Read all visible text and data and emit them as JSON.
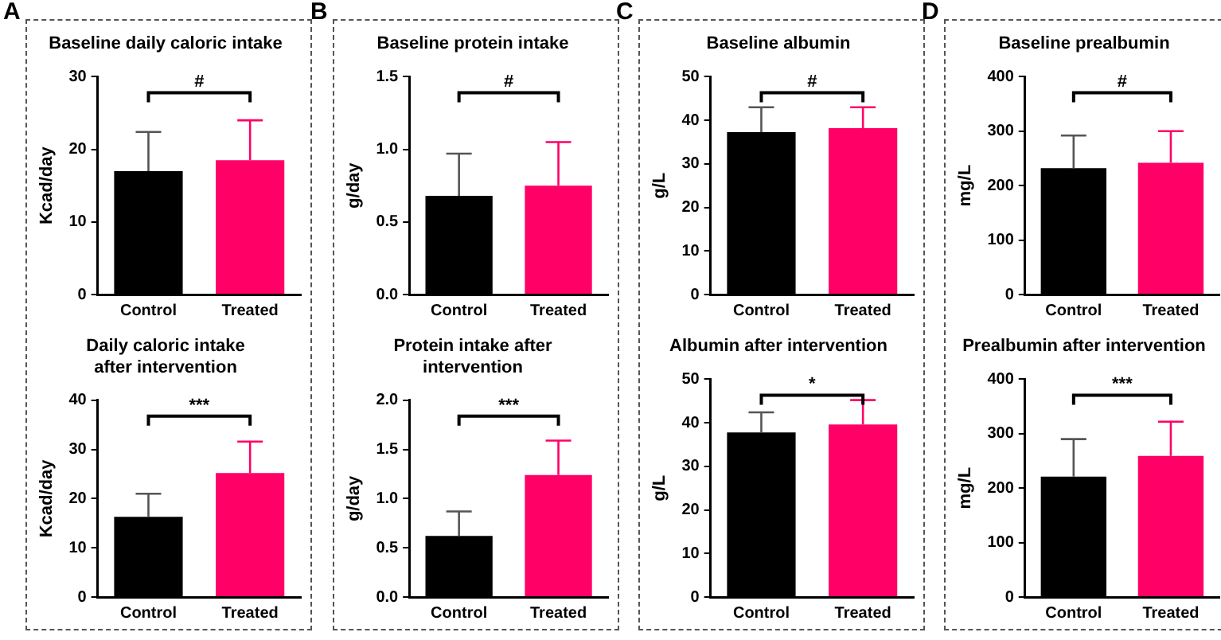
{
  "chart_data": [
    {
      "type": "bar",
      "title": "Baseline daily caloric intake",
      "ylabel": "Kcad/day",
      "categories": [
        "Control",
        "Treated"
      ],
      "values": [
        17.0,
        18.5
      ],
      "errors": [
        [
          17.0,
          22.4
        ],
        [
          18.5,
          24.0
        ]
      ],
      "colors": [
        "#000000",
        "#ff0066"
      ],
      "ylim": [
        0,
        30
      ],
      "yticks": [
        0,
        10,
        20,
        30
      ],
      "grid": false,
      "annotations": [
        "A",
        "#"
      ]
    },
    {
      "type": "bar",
      "title": "Daily caloric intake after intervention",
      "ylabel": "Kcad/day",
      "categories": [
        "Control",
        "Treated"
      ],
      "values": [
        16.3,
        25.2
      ],
      "errors": [
        [
          16.3,
          21.0
        ],
        [
          25.2,
          31.6
        ]
      ],
      "colors": [
        "#000000",
        "#ff0066"
      ],
      "ylim": [
        0,
        40
      ],
      "yticks": [
        0,
        10,
        20,
        30,
        40
      ],
      "grid": false,
      "annotations": [
        "***"
      ]
    },
    {
      "type": "bar",
      "title": "Baseline protein intake",
      "ylabel": "g/day",
      "categories": [
        "Control",
        "Treated"
      ],
      "values": [
        0.68,
        0.75
      ],
      "errors": [
        [
          0.68,
          0.97
        ],
        [
          0.75,
          1.05
        ]
      ],
      "colors": [
        "#000000",
        "#ff0066"
      ],
      "ylim": [
        0,
        1.5
      ],
      "yticks": [
        {
          "value": 0,
          "label": "0.0"
        },
        0.5,
        {
          "value": 1,
          "label": "1.0"
        },
        1.5
      ],
      "grid": false,
      "annotations": [
        "B",
        "#"
      ]
    },
    {
      "type": "bar",
      "title": "Protein intake after intervention",
      "ylabel": "g/day",
      "categories": [
        "Control",
        "Treated"
      ],
      "values": [
        0.62,
        1.24
      ],
      "errors": [
        [
          0.62,
          0.87
        ],
        [
          1.24,
          1.59
        ]
      ],
      "colors": [
        "#000000",
        "#ff0066"
      ],
      "ylim": [
        0,
        2
      ],
      "yticks": [
        {
          "value": 0,
          "label": "0.0"
        },
        0.5,
        {
          "value": 1,
          "label": "1.0"
        },
        1.5,
        {
          "value": 2,
          "label": "2.0"
        }
      ],
      "grid": false,
      "annotations": [
        "***"
      ]
    },
    {
      "type": "bar",
      "title": "Baseline albumin",
      "ylabel": "g/L",
      "categories": [
        "Control",
        "Treated"
      ],
      "values": [
        37.3,
        38.2
      ],
      "errors": [
        [
          37.3,
          43.0
        ],
        [
          38.2,
          43.0
        ]
      ],
      "colors": [
        "#000000",
        "#ff0066"
      ],
      "ylim": [
        0,
        50
      ],
      "yticks": [
        0,
        10,
        20,
        30,
        40,
        50
      ],
      "grid": false,
      "annotations": [
        "C",
        "#"
      ]
    },
    {
      "type": "bar",
      "title": "Albumin after intervention",
      "ylabel": "g/L",
      "categories": [
        "Control",
        "Treated"
      ],
      "values": [
        37.8,
        39.6
      ],
      "errors": [
        [
          37.8,
          42.4
        ],
        [
          39.6,
          45.2
        ]
      ],
      "colors": [
        "#000000",
        "#ff0066"
      ],
      "ylim": [
        0,
        50
      ],
      "yticks": [
        0,
        10,
        20,
        30,
        40,
        50
      ],
      "grid": false,
      "annotations": [
        "*"
      ]
    },
    {
      "type": "bar",
      "title": "Baseline prealbumin",
      "ylabel": "mg/L",
      "categories": [
        "Control",
        "Treated"
      ],
      "values": [
        232,
        242
      ],
      "errors": [
        [
          232,
          292
        ],
        [
          242,
          300
        ]
      ],
      "colors": [
        "#000000",
        "#ff0066"
      ],
      "ylim": [
        0,
        400
      ],
      "yticks": [
        0,
        100,
        200,
        300,
        400
      ],
      "grid": false,
      "annotations": [
        "D",
        "#"
      ]
    },
    {
      "type": "bar",
      "title": "Prealbumin after intervention",
      "ylabel": "mg/L",
      "categories": [
        "Control",
        "Treated"
      ],
      "values": [
        221,
        259
      ],
      "errors": [
        [
          221,
          290
        ],
        [
          259,
          322
        ]
      ],
      "colors": [
        "#000000",
        "#ff0066"
      ],
      "ylim": [
        0,
        400
      ],
      "yticks": [
        0,
        100,
        200,
        300,
        400
      ],
      "grid": false,
      "annotations": [
        "***"
      ]
    }
  ]
}
